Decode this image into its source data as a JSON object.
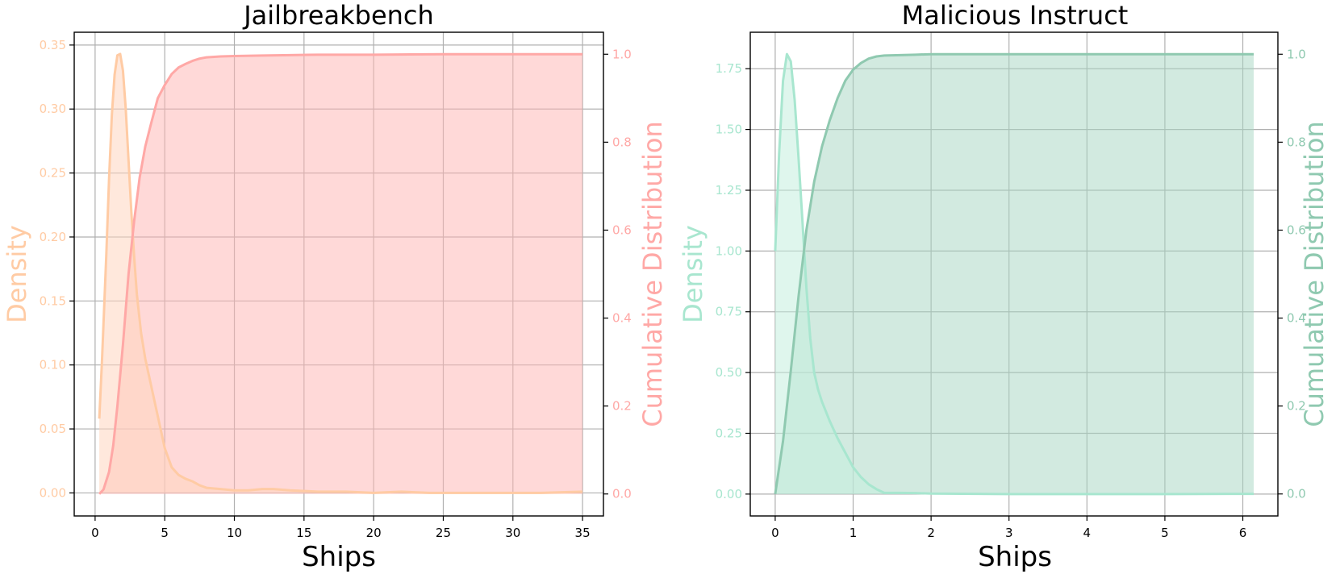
{
  "chart_data": [
    {
      "type": "area",
      "title": "Jailbreakbench",
      "xlabel": "Ships",
      "ylabel_left": "Density",
      "ylabel_right": "Cumulative Distribution",
      "xlim": [
        -1.5,
        36.5
      ],
      "xticks": [
        0,
        5,
        10,
        15,
        20,
        25,
        30,
        35
      ],
      "ylim_left": [
        -0.018,
        0.36
      ],
      "yticks_left": [
        0.0,
        0.05,
        0.1,
        0.15,
        0.2,
        0.25,
        0.3,
        0.35
      ],
      "ylim_right": [
        -0.05,
        1.05
      ],
      "yticks_right": [
        0.0,
        0.2,
        0.4,
        0.6,
        0.8,
        1.0
      ],
      "grid": true,
      "colors": {
        "density": "#FFCBA4",
        "cdf": "#FFA8A6",
        "cdf_fill": "#FFB3B1",
        "density_fill": "#FFD6BF"
      },
      "series": [
        {
          "axis": "left",
          "x": [
            0.3,
            0.5,
            0.8,
            1.0,
            1.2,
            1.4,
            1.6,
            1.8,
            2.0,
            2.2,
            2.4,
            2.6,
            2.8,
            3.0,
            3.3,
            3.6,
            4.0,
            4.5,
            5.0,
            5.5,
            6.0,
            6.5,
            7.0,
            7.5,
            8.0,
            9.0,
            10.0,
            11.0,
            12.0,
            12.8,
            14.0,
            16.0,
            18.0,
            20.0,
            22.0,
            24.0,
            26.0,
            28.0,
            30.0,
            32.0,
            35.0
          ],
          "values": [
            0.058,
            0.105,
            0.185,
            0.245,
            0.295,
            0.327,
            0.342,
            0.343,
            0.33,
            0.3,
            0.26,
            0.22,
            0.185,
            0.155,
            0.125,
            0.105,
            0.085,
            0.06,
            0.035,
            0.02,
            0.014,
            0.011,
            0.009,
            0.006,
            0.004,
            0.003,
            0.002,
            0.002,
            0.003,
            0.003,
            0.002,
            0.001,
            0.001,
            0.0,
            0.001,
            0.0,
            0.0,
            0.0,
            0.0,
            0.0,
            0.001
          ]
        },
        {
          "axis": "right",
          "x": [
            0.3,
            0.6,
            1.0,
            1.3,
            1.6,
            2.0,
            2.4,
            2.8,
            3.2,
            3.6,
            4.0,
            4.5,
            5.0,
            5.5,
            6.0,
            6.5,
            7.0,
            7.5,
            8.0,
            9.0,
            10.0,
            12.0,
            14.0,
            16.0,
            20.0,
            25.0,
            30.0,
            35.0
          ],
          "values": [
            0.0,
            0.01,
            0.05,
            0.11,
            0.2,
            0.34,
            0.5,
            0.62,
            0.72,
            0.79,
            0.84,
            0.9,
            0.93,
            0.955,
            0.97,
            0.978,
            0.985,
            0.99,
            0.993,
            0.995,
            0.996,
            0.997,
            0.998,
            0.999,
            0.999,
            1.0,
            1.0,
            1.0
          ]
        }
      ]
    },
    {
      "type": "area",
      "title": "Malicious Instruct",
      "xlabel": "Ships",
      "ylabel_left": "Density",
      "ylabel_right": "Cumulative Distribution",
      "xlim": [
        -0.32,
        6.45
      ],
      "xticks": [
        0,
        1,
        2,
        3,
        4,
        5,
        6
      ],
      "ylim_left": [
        -0.09,
        1.9
      ],
      "yticks_left": [
        0.0,
        0.25,
        0.5,
        0.75,
        1.0,
        1.25,
        1.5,
        1.75
      ],
      "ylim_right": [
        -0.05,
        1.05
      ],
      "yticks_right": [
        0.0,
        0.2,
        0.4,
        0.6,
        0.8,
        1.0
      ],
      "grid": true,
      "colors": {
        "density": "#A8E6CF",
        "cdf": "#8FC9B0",
        "cdf_fill": "#A6D5C1",
        "density_fill": "#C5EFDF"
      },
      "series": [
        {
          "axis": "left",
          "x": [
            0.0,
            0.05,
            0.1,
            0.15,
            0.2,
            0.25,
            0.3,
            0.35,
            0.4,
            0.45,
            0.5,
            0.55,
            0.6,
            0.65,
            0.7,
            0.8,
            0.9,
            1.0,
            1.1,
            1.2,
            1.3,
            1.4,
            1.6,
            1.8,
            2.0,
            3.0,
            4.0,
            5.0,
            6.14
          ],
          "values": [
            1.0,
            1.4,
            1.7,
            1.81,
            1.78,
            1.62,
            1.38,
            1.12,
            0.85,
            0.64,
            0.5,
            0.43,
            0.38,
            0.34,
            0.3,
            0.23,
            0.17,
            0.11,
            0.07,
            0.04,
            0.02,
            0.005,
            0.005,
            0.004,
            0.002,
            0.0,
            0.0,
            0.0,
            0.001
          ]
        },
        {
          "axis": "right",
          "x": [
            0.0,
            0.1,
            0.2,
            0.3,
            0.4,
            0.5,
            0.6,
            0.7,
            0.8,
            0.9,
            1.0,
            1.1,
            1.2,
            1.3,
            1.4,
            1.6,
            1.8,
            2.0,
            3.0,
            4.0,
            5.0,
            6.14
          ],
          "values": [
            0.0,
            0.12,
            0.28,
            0.45,
            0.6,
            0.71,
            0.79,
            0.85,
            0.9,
            0.94,
            0.965,
            0.98,
            0.99,
            0.995,
            0.997,
            0.998,
            0.999,
            1.0,
            1.0,
            1.0,
            1.0,
            1.0
          ]
        }
      ]
    }
  ]
}
